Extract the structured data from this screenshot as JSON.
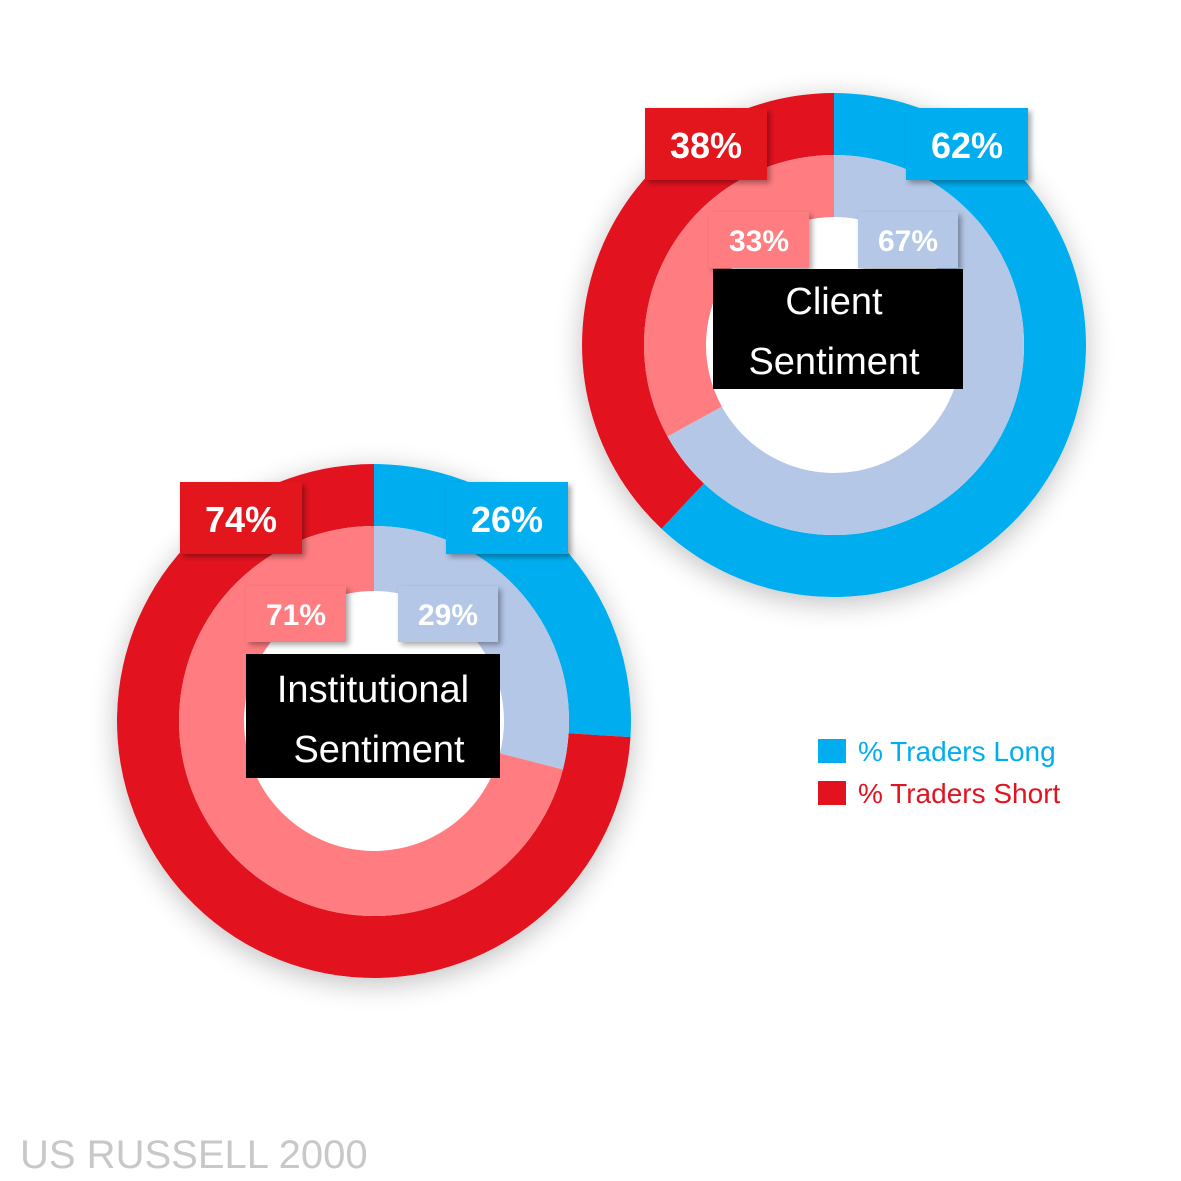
{
  "chart_data": [
    {
      "type": "pie",
      "subtype": "nested-donut",
      "title": "Client Sentiment",
      "title_lines": [
        "Client",
        "Sentiment"
      ],
      "series": [
        {
          "ring": "outer",
          "categories": [
            "% Traders Long",
            "% Traders Short"
          ],
          "values": [
            62,
            38
          ],
          "labels": [
            "62%",
            "38%"
          ]
        },
        {
          "ring": "inner",
          "categories": [
            "% Traders Long",
            "% Traders Short"
          ],
          "values": [
            67,
            33
          ],
          "labels": [
            "67%",
            "33%"
          ]
        }
      ]
    },
    {
      "type": "pie",
      "subtype": "nested-donut",
      "title": "Institutional Sentiment",
      "title_lines": [
        "Institutional",
        "Sentiment"
      ],
      "series": [
        {
          "ring": "outer",
          "categories": [
            "% Traders Long",
            "% Traders Short"
          ],
          "values": [
            26,
            74
          ],
          "labels": [
            "26%",
            "74%"
          ]
        },
        {
          "ring": "inner",
          "categories": [
            "% Traders Long",
            "% Traders Short"
          ],
          "values": [
            29,
            71
          ],
          "labels": [
            "29%",
            "71%"
          ]
        }
      ]
    }
  ],
  "legend": {
    "placement": "right",
    "items": [
      {
        "label": "% Traders Long",
        "color": "#00aeef"
      },
      {
        "label": "% Traders Short",
        "color": "#e2131f"
      }
    ]
  },
  "colors": {
    "long_outer": "#00aeef",
    "short_outer": "#e2131f",
    "long_inner": "#b4c7e7",
    "short_inner": "#ff7c80",
    "center_box": "#000000",
    "footer": "#c8c8c8"
  },
  "footer": "US RUSSELL 2000"
}
